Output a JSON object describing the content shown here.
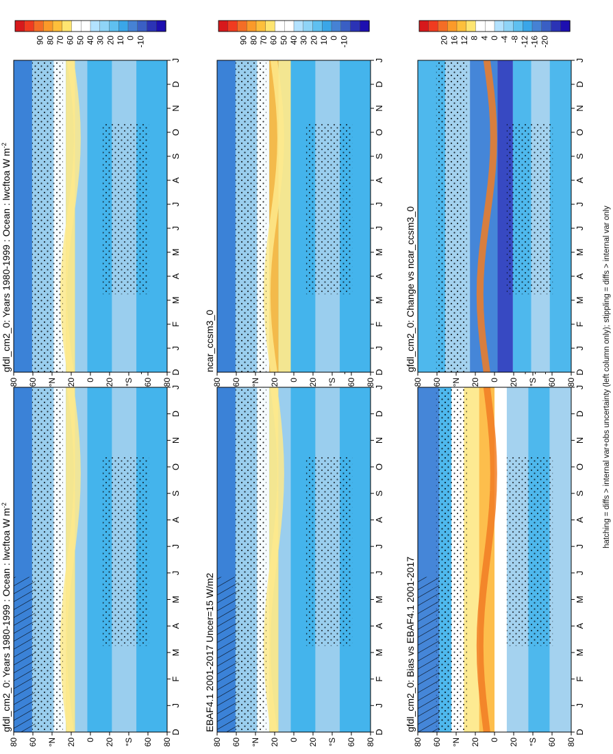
{
  "footnote": "hatching = diffs > internal var+obs uncertainty (left column only); stippling = diffs > internal var only",
  "chart_data": [
    {
      "id": "model-climatology",
      "type": "heatmap",
      "title": "gfdl_cm2_0: Years 1980-1999 : Ocean : lwcftoa W m",
      "title_superscript": "-2",
      "x_tick_labels": [
        "D",
        "J",
        "F",
        "M",
        "A",
        "M",
        "J",
        "J",
        "A",
        "S",
        "O",
        "N",
        "D",
        "J"
      ],
      "y_tick_labels": [
        "80",
        "60",
        "°N",
        "20",
        "0",
        "20",
        "°S",
        "60",
        "80"
      ],
      "colorbar_labels": [
        "90",
        "80",
        "70",
        "60",
        "50",
        "40",
        "30",
        "20",
        "10",
        "0",
        "-10"
      ],
      "hatching": true
    },
    {
      "id": "observations",
      "type": "heatmap",
      "title": "EBAF4.1 2001-2017 Uncer=15 W/m2",
      "title_superscript": "",
      "x_tick_labels": [
        "D",
        "J",
        "F",
        "M",
        "A",
        "M",
        "J",
        "J",
        "A",
        "S",
        "O",
        "N",
        "D",
        "J"
      ],
      "y_tick_labels": [
        "80",
        "60",
        "°N",
        "20",
        "0",
        "20",
        "°S",
        "60",
        "80"
      ],
      "colorbar_labels": [
        "90",
        "80",
        "70",
        "60",
        "50",
        "40",
        "30",
        "20",
        "10",
        "0",
        "-10"
      ],
      "hatching": true
    },
    {
      "id": "model-bias",
      "type": "heatmap",
      "title": "gfdl_cm2_0: Bias vs EBAF4.1 2001-2017",
      "title_superscript": "",
      "x_tick_labels": [
        "D",
        "J",
        "F",
        "M",
        "A",
        "M",
        "J",
        "J",
        "A",
        "S",
        "O",
        "N",
        "D",
        "J"
      ],
      "y_tick_labels": [
        "80",
        "60",
        "°N",
        "20",
        "0",
        "20",
        "°S",
        "60",
        "80"
      ],
      "colorbar_labels": [
        "20",
        "16",
        "12",
        "8",
        "4",
        "0",
        "-4",
        "-8",
        "-12",
        "-16",
        "-20"
      ],
      "hatching": true
    },
    {
      "id": "model-climatology-right",
      "type": "heatmap",
      "title": "gfdl_cm2_0: Years 1980-1999 : Ocean : lwcftoa W m",
      "title_superscript": "-2",
      "x_tick_labels": [
        "D",
        "J",
        "F",
        "M",
        "A",
        "M",
        "J",
        "J",
        "A",
        "S",
        "O",
        "N",
        "D",
        "J"
      ],
      "y_tick_labels": [
        "80",
        "60",
        "°N",
        "20",
        "0",
        "20",
        "°S",
        "60",
        "80"
      ],
      "colorbar_labels": [
        "90",
        "80",
        "70",
        "60",
        "50",
        "40",
        "30",
        "20",
        "10",
        "0",
        "-10"
      ],
      "hatching": false
    },
    {
      "id": "reference-model",
      "type": "heatmap",
      "title": "ncar_ccsm3_0",
      "title_superscript": "",
      "x_tick_labels": [
        "D",
        "J",
        "F",
        "M",
        "A",
        "M",
        "J",
        "J",
        "A",
        "S",
        "O",
        "N",
        "D",
        "J"
      ],
      "y_tick_labels": [
        "80",
        "60",
        "°N",
        "20",
        "0",
        "20",
        "°S",
        "60",
        "80"
      ],
      "colorbar_labels": [
        "90",
        "80",
        "70",
        "60",
        "50",
        "40",
        "30",
        "20",
        "10",
        "0",
        "-10"
      ],
      "hatching": false
    },
    {
      "id": "model-change",
      "type": "heatmap",
      "title": "gfdl_cm2_0: Change vs ncar_ccsm3_0",
      "title_superscript": "",
      "x_tick_labels": [
        "D",
        "J",
        "F",
        "M",
        "A",
        "M",
        "J",
        "J",
        "A",
        "S",
        "O",
        "N",
        "D",
        "J"
      ],
      "y_tick_labels": [
        "80",
        "60",
        "°N",
        "20",
        "0",
        "20",
        "°S",
        "60",
        "80"
      ],
      "colorbar_labels": [
        "20",
        "16",
        "12",
        "8",
        "4",
        "0",
        "-4",
        "-8",
        "-12",
        "-16",
        "-20"
      ],
      "hatching": false
    }
  ],
  "colors": {
    "scale": [
      "#d7191c",
      "#f03b20",
      "#f46d26",
      "#fb9a29",
      "#fdbf3b",
      "#fee570",
      "#ffffff",
      "#ffffff",
      "#b3e2ff",
      "#8fd4f7",
      "#5fc0f0",
      "#3aa6e8",
      "#4682d4",
      "#3a5fc4",
      "#2b33b5",
      "#1d0fb0"
    ],
    "seq_light": "#9fd0ee",
    "seq_mid": "#44b4ec",
    "seq_deep": "#3b7fd6",
    "seq_dark": "#2c3fbf",
    "warm_pale": "#fde98c",
    "warm_mid": "#fdbb42",
    "warm_deep": "#f17c24"
  }
}
